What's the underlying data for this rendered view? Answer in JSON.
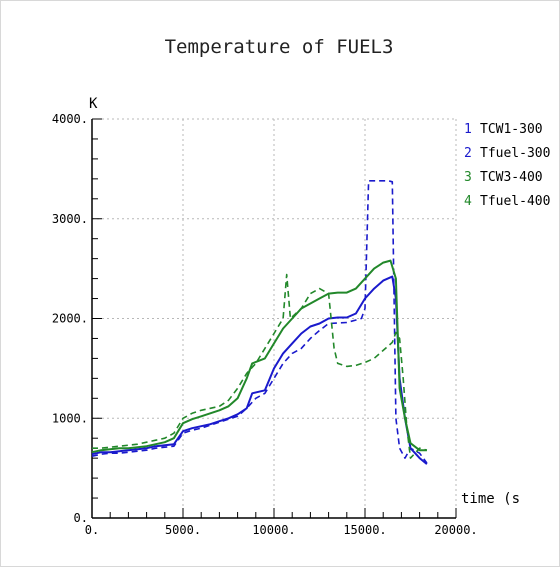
{
  "chart_data": {
    "type": "line",
    "title": "Temperature of FUEL3",
    "xlabel": "time (s",
    "ylabel": "K",
    "xlim": [
      0,
      20000
    ],
    "ylim": [
      0,
      4000
    ],
    "x_ticks": [
      {
        "value": 0,
        "label": "0."
      },
      {
        "value": 5000,
        "label": "5000."
      },
      {
        "value": 10000,
        "label": "10000."
      },
      {
        "value": 15000,
        "label": "15000."
      },
      {
        "value": 20000,
        "label": "20000."
      }
    ],
    "y_ticks": [
      {
        "value": 0,
        "label": "0."
      },
      {
        "value": 1000,
        "label": "1000."
      },
      {
        "value": 2000,
        "label": "2000."
      },
      {
        "value": 3000,
        "label": "3000."
      },
      {
        "value": 4000,
        "label": "4000."
      }
    ],
    "grid": true,
    "legend_position": "right",
    "series": [
      {
        "name": "TCW1-300",
        "marker": "1",
        "color": "#1a1acc",
        "dash": "solid",
        "points": [
          [
            0,
            640
          ],
          [
            500,
            660
          ],
          [
            1000,
            660
          ],
          [
            1500,
            670
          ],
          [
            2000,
            680
          ],
          [
            2500,
            690
          ],
          [
            3000,
            700
          ],
          [
            3500,
            720
          ],
          [
            4000,
            730
          ],
          [
            4500,
            740
          ],
          [
            5000,
            870
          ],
          [
            5500,
            900
          ],
          [
            6000,
            920
          ],
          [
            6500,
            940
          ],
          [
            7000,
            970
          ],
          [
            7500,
            1000
          ],
          [
            8000,
            1040
          ],
          [
            8500,
            1100
          ],
          [
            8800,
            1250
          ],
          [
            9500,
            1280
          ],
          [
            10000,
            1500
          ],
          [
            10500,
            1650
          ],
          [
            11000,
            1750
          ],
          [
            11500,
            1850
          ],
          [
            12000,
            1920
          ],
          [
            12500,
            1950
          ],
          [
            13000,
            2000
          ],
          [
            13500,
            2010
          ],
          [
            14000,
            2010
          ],
          [
            14500,
            2050
          ],
          [
            15000,
            2200
          ],
          [
            15500,
            2300
          ],
          [
            16000,
            2380
          ],
          [
            16500,
            2420
          ],
          [
            16700,
            2200
          ],
          [
            16900,
            1400
          ],
          [
            17200,
            1000
          ],
          [
            17500,
            700
          ],
          [
            18000,
            600
          ],
          [
            18400,
            540
          ]
        ]
      },
      {
        "name": "Tfuel-300",
        "marker": "2",
        "color": "#1a1acc",
        "dash": "dashed",
        "points": [
          [
            0,
            620
          ],
          [
            500,
            640
          ],
          [
            1000,
            650
          ],
          [
            1500,
            650
          ],
          [
            2000,
            660
          ],
          [
            2500,
            670
          ],
          [
            3000,
            680
          ],
          [
            3500,
            700
          ],
          [
            4000,
            710
          ],
          [
            4500,
            720
          ],
          [
            5000,
            850
          ],
          [
            5500,
            880
          ],
          [
            6000,
            900
          ],
          [
            6500,
            930
          ],
          [
            7000,
            960
          ],
          [
            7500,
            990
          ],
          [
            8000,
            1020
          ],
          [
            8500,
            1100
          ],
          [
            9000,
            1200
          ],
          [
            9500,
            1250
          ],
          [
            10000,
            1400
          ],
          [
            10500,
            1550
          ],
          [
            11000,
            1650
          ],
          [
            11500,
            1700
          ],
          [
            12000,
            1800
          ],
          [
            12500,
            1880
          ],
          [
            13000,
            1950
          ],
          [
            14000,
            1960
          ],
          [
            14800,
            2000
          ],
          [
            15000,
            2100
          ],
          [
            15200,
            3380
          ],
          [
            16000,
            3380
          ],
          [
            16300,
            3380
          ],
          [
            16500,
            3370
          ],
          [
            16700,
            1000
          ],
          [
            16900,
            700
          ],
          [
            17200,
            600
          ],
          [
            17500,
            700
          ],
          [
            18000,
            650
          ],
          [
            18400,
            550
          ]
        ]
      },
      {
        "name": "TCW3-400",
        "marker": "3",
        "color": "#22882a",
        "dash": "solid",
        "points": [
          [
            0,
            660
          ],
          [
            500,
            680
          ],
          [
            1000,
            690
          ],
          [
            1500,
            700
          ],
          [
            2000,
            700
          ],
          [
            2500,
            710
          ],
          [
            3000,
            720
          ],
          [
            3500,
            740
          ],
          [
            4000,
            760
          ],
          [
            4500,
            800
          ],
          [
            5000,
            950
          ],
          [
            5500,
            990
          ],
          [
            6000,
            1020
          ],
          [
            6500,
            1050
          ],
          [
            7000,
            1080
          ],
          [
            7500,
            1120
          ],
          [
            8000,
            1200
          ],
          [
            8500,
            1400
          ],
          [
            8800,
            1550
          ],
          [
            9500,
            1600
          ],
          [
            10000,
            1750
          ],
          [
            10500,
            1900
          ],
          [
            11000,
            2000
          ],
          [
            11500,
            2100
          ],
          [
            12000,
            2150
          ],
          [
            12500,
            2200
          ],
          [
            13000,
            2250
          ],
          [
            13500,
            2260
          ],
          [
            14000,
            2260
          ],
          [
            14500,
            2300
          ],
          [
            15000,
            2400
          ],
          [
            15500,
            2500
          ],
          [
            16000,
            2560
          ],
          [
            16400,
            2580
          ],
          [
            16700,
            2400
          ],
          [
            16900,
            1300
          ],
          [
            17200,
            1000
          ],
          [
            17500,
            750
          ],
          [
            18000,
            680
          ],
          [
            18400,
            680
          ]
        ]
      },
      {
        "name": "Tfuel-400",
        "marker": "4",
        "color": "#22882a",
        "dash": "dashed",
        "points": [
          [
            0,
            700
          ],
          [
            500,
            700
          ],
          [
            1000,
            710
          ],
          [
            1500,
            720
          ],
          [
            2000,
            730
          ],
          [
            2500,
            740
          ],
          [
            3000,
            760
          ],
          [
            3500,
            780
          ],
          [
            4000,
            800
          ],
          [
            4500,
            850
          ],
          [
            5000,
            1000
          ],
          [
            5500,
            1050
          ],
          [
            6000,
            1080
          ],
          [
            6500,
            1100
          ],
          [
            7000,
            1120
          ],
          [
            7500,
            1180
          ],
          [
            8000,
            1300
          ],
          [
            8500,
            1450
          ],
          [
            9000,
            1550
          ],
          [
            9500,
            1700
          ],
          [
            10000,
            1850
          ],
          [
            10500,
            2000
          ],
          [
            10700,
            2440
          ],
          [
            10900,
            2000
          ],
          [
            11500,
            2100
          ],
          [
            12000,
            2250
          ],
          [
            12500,
            2300
          ],
          [
            13000,
            2250
          ],
          [
            13300,
            1700
          ],
          [
            13500,
            1550
          ],
          [
            14000,
            1520
          ],
          [
            14500,
            1530
          ],
          [
            15000,
            1560
          ],
          [
            15500,
            1600
          ],
          [
            16000,
            1680
          ],
          [
            16500,
            1760
          ],
          [
            16700,
            1860
          ],
          [
            16900,
            1800
          ],
          [
            17100,
            1400
          ],
          [
            17300,
            900
          ],
          [
            17500,
            600
          ],
          [
            18000,
            700
          ],
          [
            18400,
            680
          ]
        ]
      }
    ]
  }
}
